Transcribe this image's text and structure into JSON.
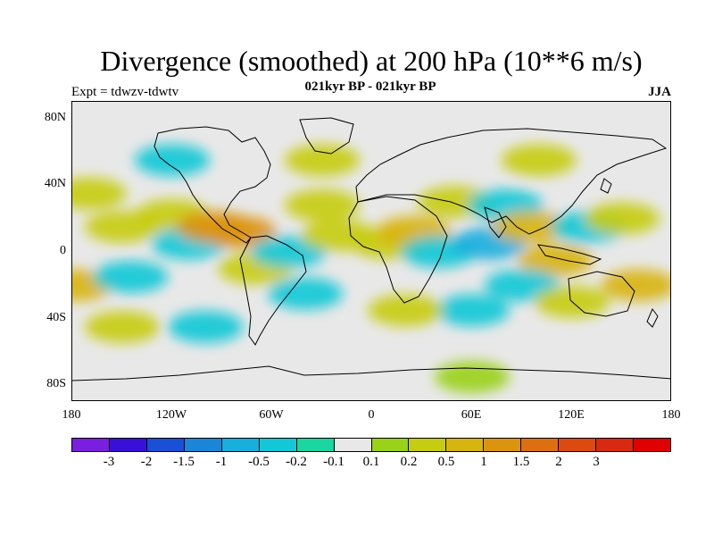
{
  "title": "Divergence (smoothed) at 200 hPa (10**6 m/s)",
  "subtitle": "021kyr BP - 021kyr BP",
  "expt_label": "Expt = tdwzv-tdwtv",
  "season": "JJA",
  "map": {
    "projection": "cylindrical equidistant",
    "lon_range": [
      -180,
      180
    ],
    "lat_range": [
      -90,
      90
    ],
    "background_color": "#e8e8e8",
    "coastline_color": "#000000"
  },
  "y_axis": {
    "ticks": [
      {
        "lat": 80,
        "label": "80N"
      },
      {
        "lat": 40,
        "label": "40N"
      },
      {
        "lat": 0,
        "label": "0"
      },
      {
        "lat": -40,
        "label": "40S"
      },
      {
        "lat": -80,
        "label": "80S"
      }
    ]
  },
  "x_axis": {
    "ticks": [
      {
        "lon": -180,
        "label": "180"
      },
      {
        "lon": -120,
        "label": "120W"
      },
      {
        "lon": -60,
        "label": "60W"
      },
      {
        "lon": 0,
        "label": "0"
      },
      {
        "lon": 60,
        "label": "60E"
      },
      {
        "lon": 120,
        "label": "120E"
      },
      {
        "lon": 180,
        "label": "180"
      }
    ]
  },
  "colorbar": {
    "colors": [
      "#7a1fe0",
      "#3a10d8",
      "#1a4fd8",
      "#1a86d8",
      "#18aede",
      "#12c8d6",
      "#1ad6a0",
      "#e8e8e8",
      "#9ad21a",
      "#c6cc10",
      "#d8b410",
      "#dc9410",
      "#dc7010",
      "#dc4a10",
      "#d82a10",
      "#e00000"
    ],
    "labels": [
      "-3",
      "-2",
      "-1.5",
      "-1",
      "-0.5",
      "-0.2",
      "-0.1",
      "0.1",
      "0.2",
      "0.5",
      "1",
      "1.5",
      "2",
      "3"
    ]
  },
  "chart_data": {
    "type": "heatmap",
    "title": "Divergence (smoothed) at 200 hPa (10**6 m/s)",
    "subtitle": "021kyr BP - 021kyr BP",
    "xlabel": "",
    "ylabel": "",
    "xlim": [
      -180,
      180
    ],
    "ylim": [
      -90,
      90
    ],
    "levels": [
      -3,
      -2,
      -1.5,
      -1,
      -0.5,
      -0.2,
      -0.1,
      0.1,
      0.2,
      0.5,
      1,
      1.5,
      2,
      3
    ],
    "field": [
      {
        "lon": -170,
        "lat": 35,
        "value": 0.3
      },
      {
        "lon": -178,
        "lat": -20,
        "value": 0.9
      },
      {
        "lon": -150,
        "lat": 15,
        "value": 0.4
      },
      {
        "lon": -145,
        "lat": -15,
        "value": -0.4
      },
      {
        "lon": -120,
        "lat": 22,
        "value": 0.4
      },
      {
        "lon": -110,
        "lat": 5,
        "value": -0.4
      },
      {
        "lon": -95,
        "lat": 15,
        "value": 1.3
      },
      {
        "lon": -80,
        "lat": 12,
        "value": 1.1
      },
      {
        "lon": -70,
        "lat": -10,
        "value": 0.4
      },
      {
        "lon": -50,
        "lat": 0,
        "value": -0.4
      },
      {
        "lon": -40,
        "lat": -25,
        "value": -0.3
      },
      {
        "lon": -30,
        "lat": 28,
        "value": 0.3
      },
      {
        "lon": -20,
        "lat": 10,
        "value": 0.4
      },
      {
        "lon": 10,
        "lat": 5,
        "value": 0.4
      },
      {
        "lon": 25,
        "lat": 12,
        "value": 0.6
      },
      {
        "lon": 40,
        "lat": 0,
        "value": -0.4
      },
      {
        "lon": 50,
        "lat": 30,
        "value": 0.4
      },
      {
        "lon": 70,
        "lat": 5,
        "value": -0.5
      },
      {
        "lon": 80,
        "lat": 28,
        "value": -0.4
      },
      {
        "lon": 95,
        "lat": 15,
        "value": 0.6
      },
      {
        "lon": 110,
        "lat": -5,
        "value": 0.7
      },
      {
        "lon": 130,
        "lat": 15,
        "value": -0.4
      },
      {
        "lon": 150,
        "lat": 20,
        "value": 0.5
      },
      {
        "lon": 160,
        "lat": -20,
        "value": 0.7
      },
      {
        "lon": 90,
        "lat": -20,
        "value": -0.4
      },
      {
        "lon": 60,
        "lat": -35,
        "value": -0.3
      },
      {
        "lon": 120,
        "lat": -30,
        "value": 0.3
      },
      {
        "lon": -150,
        "lat": -45,
        "value": 0.4
      },
      {
        "lon": -100,
        "lat": -45,
        "value": -0.3
      },
      {
        "lon": 20,
        "lat": -35,
        "value": 0.3
      },
      {
        "lon": 60,
        "lat": -75,
        "value": 0.2
      },
      {
        "lon": -120,
        "lat": 55,
        "value": -0.3
      },
      {
        "lon": -30,
        "lat": 55,
        "value": 0.3
      },
      {
        "lon": 100,
        "lat": 55,
        "value": 0.3
      }
    ]
  }
}
